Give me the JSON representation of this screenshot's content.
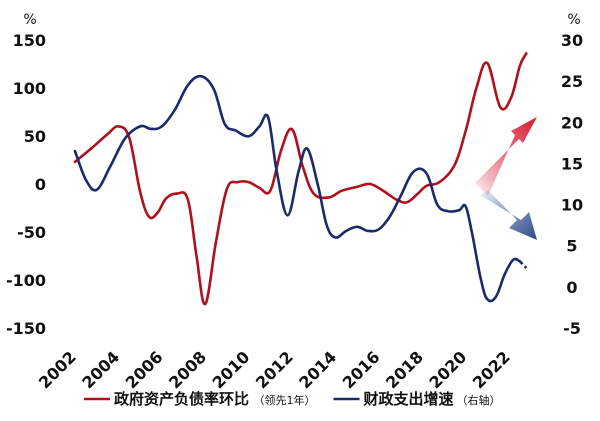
{
  "chart_data": {
    "type": "line",
    "left_axis": {
      "unit": "%",
      "ylim": [
        -150,
        150
      ],
      "ticks": [
        -150,
        -100,
        -50,
        0,
        50,
        100,
        150
      ]
    },
    "right_axis": {
      "unit": "%",
      "ylim": [
        -5,
        30
      ],
      "ticks": [
        -5,
        0,
        5,
        10,
        15,
        20,
        25,
        30
      ]
    },
    "xlim": [
      2001.4,
      2023.8
    ],
    "x_ticks": [
      2002,
      2004,
      2006,
      2008,
      2010,
      2012,
      2014,
      2016,
      2018,
      2020,
      2022
    ],
    "grid": false,
    "legend_position": "bottom",
    "series": [
      {
        "name": "政府资产负债率环比",
        "note": "（领先1年）",
        "axis": "left",
        "color": "#b0101c",
        "points": [
          [
            2002,
            23
          ],
          [
            2002.8,
            38
          ],
          [
            2003.5,
            52
          ],
          [
            2004,
            60
          ],
          [
            2004.5,
            48
          ],
          [
            2005,
            -8
          ],
          [
            2005.4,
            -34
          ],
          [
            2005.8,
            -30
          ],
          [
            2006.2,
            -15
          ],
          [
            2006.7,
            -10
          ],
          [
            2007.2,
            -16
          ],
          [
            2007.6,
            -75
          ],
          [
            2008,
            -125
          ],
          [
            2008.5,
            -60
          ],
          [
            2009,
            -5
          ],
          [
            2009.5,
            2
          ],
          [
            2010,
            2
          ],
          [
            2010.5,
            -4
          ],
          [
            2011,
            -7
          ],
          [
            2011.5,
            35
          ],
          [
            2012,
            57
          ],
          [
            2012.5,
            18
          ],
          [
            2013,
            -10
          ],
          [
            2013.7,
            -14
          ],
          [
            2014.3,
            -7
          ],
          [
            2015,
            -3
          ],
          [
            2015.6,
            0
          ],
          [
            2016.2,
            -7
          ],
          [
            2016.8,
            -16
          ],
          [
            2017.3,
            -19
          ],
          [
            2017.8,
            -10
          ],
          [
            2018.2,
            -2
          ],
          [
            2018.8,
            2
          ],
          [
            2019.5,
            20
          ],
          [
            2020,
            55
          ],
          [
            2020.5,
            100
          ],
          [
            2021,
            126
          ],
          [
            2021.6,
            80
          ],
          [
            2022.1,
            90
          ],
          [
            2022.5,
            123
          ],
          [
            2022.8,
            136
          ]
        ]
      },
      {
        "name": "财政支出增速",
        "note": "（右轴）",
        "axis": "right",
        "color": "#1b2a6b",
        "points": [
          [
            2002,
            16.5
          ],
          [
            2002.5,
            13
          ],
          [
            2003,
            11.8
          ],
          [
            2003.6,
            14.5
          ],
          [
            2004.3,
            18
          ],
          [
            2005,
            19.5
          ],
          [
            2005.5,
            19.2
          ],
          [
            2006,
            19.5
          ],
          [
            2006.6,
            21.5
          ],
          [
            2007.2,
            24.5
          ],
          [
            2007.8,
            25.6
          ],
          [
            2008.4,
            24
          ],
          [
            2008.9,
            19.8
          ],
          [
            2009.4,
            19
          ],
          [
            2010,
            18.3
          ],
          [
            2010.5,
            19.5
          ],
          [
            2010.9,
            20.6
          ],
          [
            2011.3,
            14
          ],
          [
            2011.8,
            8.7
          ],
          [
            2012.3,
            14
          ],
          [
            2012.7,
            16.8
          ],
          [
            2013.2,
            12.3
          ],
          [
            2013.6,
            7.5
          ],
          [
            2014,
            6
          ],
          [
            2014.5,
            6.8
          ],
          [
            2015,
            7.3
          ],
          [
            2015.5,
            6.8
          ],
          [
            2016,
            7
          ],
          [
            2016.5,
            8.5
          ],
          [
            2017,
            11
          ],
          [
            2017.6,
            14
          ],
          [
            2018.2,
            13.8
          ],
          [
            2018.7,
            10
          ],
          [
            2019.2,
            9.2
          ],
          [
            2019.7,
            9.3
          ],
          [
            2020,
            9.8
          ],
          [
            2020.3,
            6.5
          ],
          [
            2020.7,
            1
          ],
          [
            2021,
            -1.5
          ],
          [
            2021.4,
            -1.2
          ],
          [
            2021.8,
            1.5
          ],
          [
            2022.2,
            3.3
          ],
          [
            2022.5,
            3.1
          ]
        ],
        "dashed_points": [
          [
            2022.5,
            3.1
          ],
          [
            2022.8,
            2.3
          ]
        ]
      }
    ],
    "annotations": [
      {
        "type": "arrow",
        "direction": "up-right",
        "color": "#d91830",
        "meaning": "rising"
      },
      {
        "type": "arrow",
        "direction": "down-right",
        "color": "#2e4a8a",
        "meaning": "falling"
      }
    ]
  }
}
